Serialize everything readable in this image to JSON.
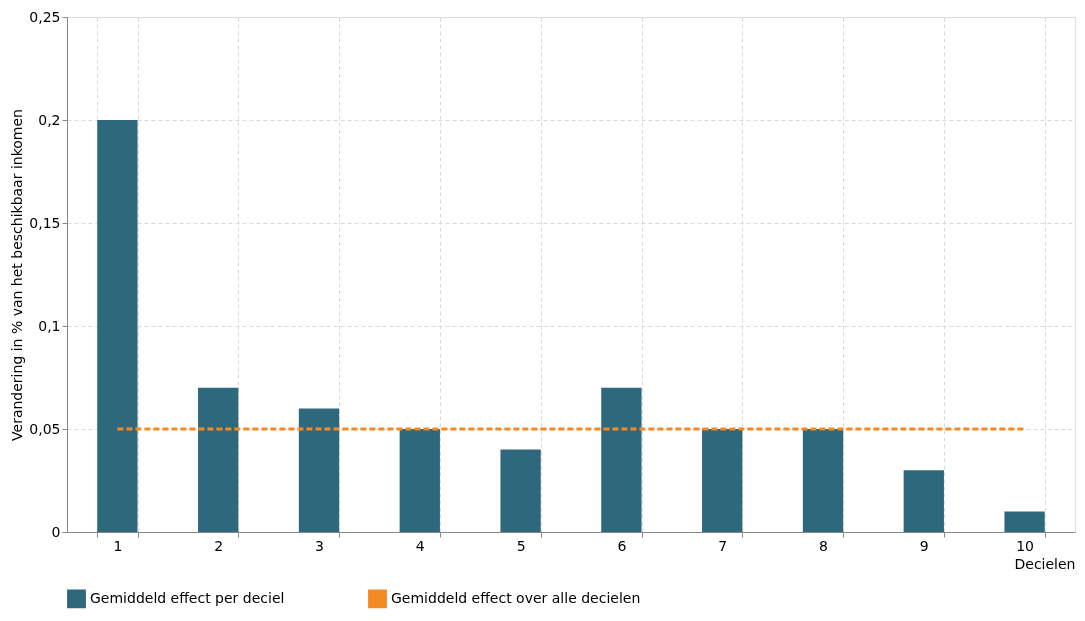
{
  "chart_data": {
    "type": "bar",
    "xlabel": "Decielen",
    "ylabel": "Verandering in % van het beschikbaar inkomen",
    "categories": [
      "1",
      "2",
      "3",
      "4",
      "5",
      "6",
      "7",
      "8",
      "9",
      "10"
    ],
    "series": [
      {
        "name": "Gemiddeld effect per deciel",
        "color": "#2e687d",
        "values": [
          0.2,
          0.07,
          0.06,
          0.05,
          0.04,
          0.07,
          0.05,
          0.05,
          0.03,
          0.01
        ]
      },
      {
        "name": "Gemiddeld effect over alle decielen",
        "type": "line",
        "color": "#f28a26",
        "line_style": "dashed",
        "marker": "none",
        "values": [
          0.05,
          0.05,
          0.05,
          0.05,
          0.05,
          0.05,
          0.05,
          0.05,
          0.05,
          0.05
        ]
      }
    ],
    "ylim": [
      0,
      0.25
    ],
    "yticks": [
      {
        "value": 0,
        "label": "0"
      },
      {
        "value": 0.05,
        "label": "0,05"
      },
      {
        "value": 0.1,
        "label": "0,1"
      },
      {
        "value": 0.15,
        "label": "0,15"
      },
      {
        "value": 0.2,
        "label": "0,2"
      },
      {
        "value": 0.25,
        "label": "0,25"
      }
    ],
    "grid": true,
    "legend": "bottom"
  }
}
